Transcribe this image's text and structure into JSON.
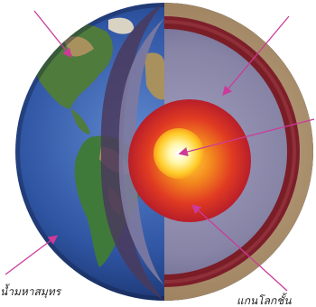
{
  "labels": {
    "oceanic_crust": "น้ำมหาสมุทร",
    "outer_core": "แกนโลกชั้น"
  },
  "colors": {
    "arrow": "#cc3a9a",
    "ocean_deep": "#1f3a7a",
    "ocean_light": "#4f78c0",
    "land_green": "#3f7a3a",
    "land_tan": "#b08a5a",
    "crust_tan": "#b49a78",
    "mantle_violet": "#8a86a6",
    "mantle_stripe": "#7d1f2a",
    "outer_core_red": "#d4262a",
    "outer_core_orange": "#f07a1e",
    "inner_core_yellow": "#ffe040",
    "inner_core_white": "#fffde8"
  }
}
